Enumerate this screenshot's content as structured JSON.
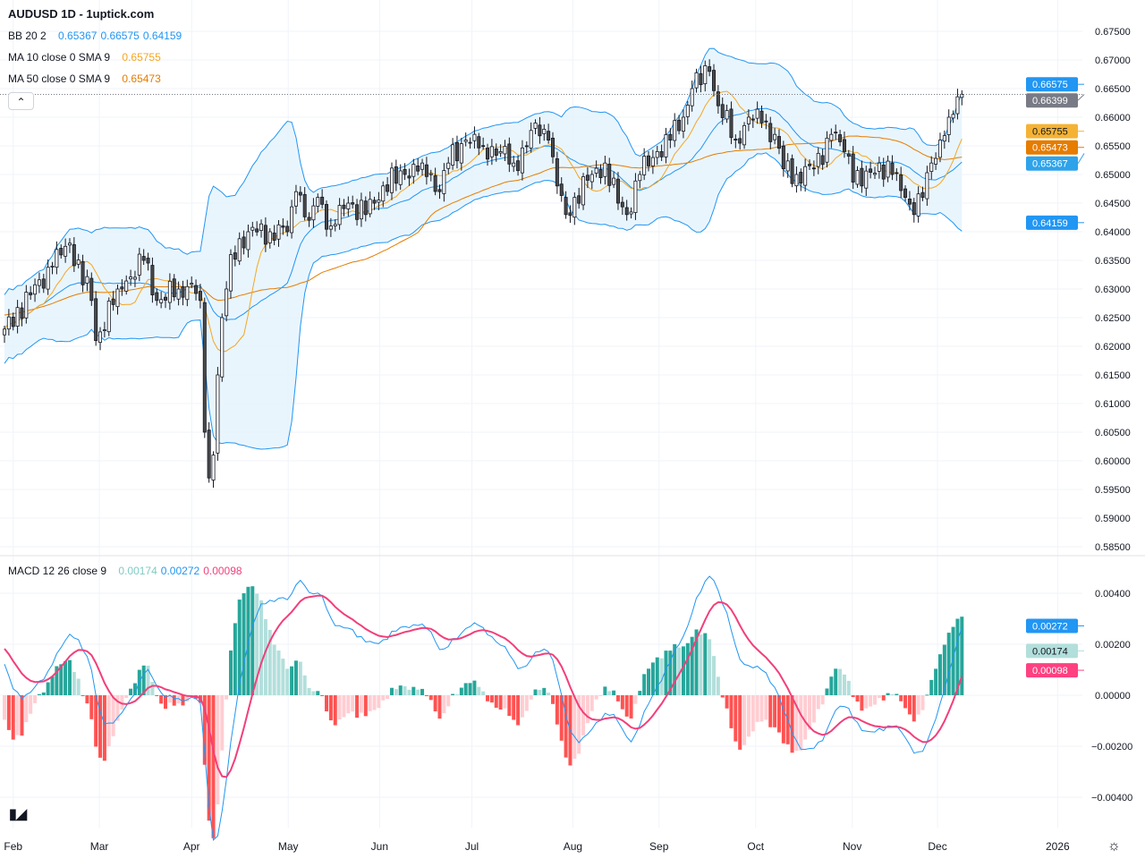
{
  "header": {
    "title": "AUDUSD 1D - 1uptick.com"
  },
  "legend": {
    "bb": {
      "label": "BB 20 2",
      "values": [
        "0.65367",
        "0.66575",
        "0.64159"
      ],
      "color": "#2196f3"
    },
    "ma10": {
      "label": "MA 10 close 0 SMA 9",
      "value": "0.65755",
      "color": "#f5a623"
    },
    "ma50": {
      "label": "MA 50 close 0 SMA 9",
      "value": "0.65473",
      "color": "#e67c00"
    },
    "macd": {
      "label": "MACD 12 26 close 9",
      "values": [
        "0.00174",
        "0.00272",
        "0.00098"
      ],
      "colors": [
        "#80cbc4",
        "#2196f3",
        "#f23f7a"
      ]
    }
  },
  "collapse_icon": "chevron-up-icon",
  "logo": "TV",
  "settings_icon": "gear-icon",
  "chart_data": {
    "type": "candlestick",
    "symbol": "AUDUSD",
    "interval": "1D",
    "bars": 221,
    "close_keypoints": [
      [
        0,
        0.623
      ],
      [
        11,
        0.634
      ],
      [
        15,
        0.638
      ],
      [
        20,
        0.628
      ],
      [
        21,
        0.621
      ],
      [
        26,
        0.63
      ],
      [
        32,
        0.635
      ],
      [
        35,
        0.628
      ],
      [
        40,
        0.63
      ],
      [
        43,
        0.631
      ],
      [
        45,
        0.628
      ],
      [
        46,
        0.605
      ],
      [
        47,
        0.597
      ],
      [
        48,
        0.601
      ],
      [
        49,
        0.615
      ],
      [
        50,
        0.625
      ],
      [
        51,
        0.63
      ],
      [
        52,
        0.636
      ],
      [
        56,
        0.64
      ],
      [
        61,
        0.64
      ],
      [
        65,
        0.64
      ],
      [
        67,
        0.647
      ],
      [
        70,
        0.642
      ],
      [
        72,
        0.646
      ],
      [
        75,
        0.641
      ],
      [
        79,
        0.645
      ],
      [
        83,
        0.643
      ],
      [
        87,
        0.648
      ],
      [
        92,
        0.65
      ],
      [
        96,
        0.652
      ],
      [
        100,
        0.647
      ],
      [
        102,
        0.652
      ],
      [
        106,
        0.656
      ],
      [
        110,
        0.655
      ],
      [
        114,
        0.654
      ],
      [
        117,
        0.652
      ],
      [
        120,
        0.655
      ],
      [
        122,
        0.659
      ],
      [
        125,
        0.656
      ],
      [
        127,
        0.648
      ],
      [
        129,
        0.643
      ],
      [
        131,
        0.646
      ],
      [
        135,
        0.65
      ],
      [
        138,
        0.652
      ],
      [
        141,
        0.645
      ],
      [
        143,
        0.643
      ],
      [
        146,
        0.65
      ],
      [
        150,
        0.654
      ],
      [
        153,
        0.656
      ],
      [
        156,
        0.66
      ],
      [
        158,
        0.665
      ],
      [
        162,
        0.668
      ],
      [
        164,
        0.662
      ],
      [
        168,
        0.656
      ],
      [
        171,
        0.66
      ],
      [
        174,
        0.659
      ],
      [
        177,
        0.657
      ],
      [
        179,
        0.651
      ],
      [
        182,
        0.65
      ],
      [
        186,
        0.651
      ],
      [
        190,
        0.657
      ],
      [
        193,
        0.654
      ],
      [
        197,
        0.648
      ],
      [
        201,
        0.652
      ],
      [
        204,
        0.65
      ],
      [
        207,
        0.646
      ],
      [
        209,
        0.643
      ],
      [
        211,
        0.646
      ],
      [
        213,
        0.652
      ],
      [
        215,
        0.656
      ],
      [
        217,
        0.66
      ],
      [
        220,
        0.66399
      ]
    ],
    "price_axis": {
      "ticks": [
        "0.67500",
        "0.67000",
        "0.66500",
        "0.66000",
        "0.65500",
        "0.65000",
        "0.64500",
        "0.64000",
        "0.63500",
        "0.63000",
        "0.62500",
        "0.62000",
        "0.61500",
        "0.61000",
        "0.60500",
        "0.60000",
        "0.59500",
        "0.59000",
        "0.58500"
      ],
      "range": [
        0.585,
        0.675
      ]
    },
    "macd_axis": {
      "ticks": [
        "0.00400",
        "0.00200",
        "0.00000",
        "-0.00200",
        "-0.00400"
      ],
      "range": [
        -0.004,
        0.004
      ]
    },
    "price_labels": [
      {
        "value": 0.66575,
        "text": "0.66575",
        "bg": "#2196f3",
        "fg": "#ffffff"
      },
      {
        "value": 0.66399,
        "text": "0.66399",
        "bg": "#787b86",
        "fg": "#ffffff"
      },
      {
        "value": 0.65755,
        "text": "0.65755",
        "bg": "#f5b335",
        "fg": "#131722"
      },
      {
        "value": 0.65473,
        "text": "0.65473",
        "bg": "#e67c00",
        "fg": "#ffffff"
      },
      {
        "value": 0.65367,
        "text": "0.65367",
        "bg": "#2ea3ea",
        "fg": "#ffffff"
      },
      {
        "value": 0.64159,
        "text": "0.64159",
        "bg": "#2196f3",
        "fg": "#ffffff"
      }
    ],
    "macd_labels": [
      {
        "value": 0.00272,
        "text": "0.00272",
        "bg": "#2196f3",
        "fg": "#ffffff"
      },
      {
        "value": 0.00174,
        "text": "0.00174",
        "bg": "#b2dfdb",
        "fg": "#131722"
      },
      {
        "value": 0.00098,
        "text": "0.00098",
        "bg": "#ff4081",
        "fg": "#ffffff"
      }
    ],
    "time_ticks": [
      {
        "label": "Feb",
        "bar": 2
      },
      {
        "label": "Mar",
        "bar": 21.8
      },
      {
        "label": "Apr",
        "bar": 43
      },
      {
        "label": "May",
        "bar": 65.2
      },
      {
        "label": "Jun",
        "bar": 86.2
      },
      {
        "label": "Jul",
        "bar": 107.4
      },
      {
        "label": "Aug",
        "bar": 130.6
      },
      {
        "label": "Sep",
        "bar": 150.4
      },
      {
        "label": "Oct",
        "bar": 172.6
      },
      {
        "label": "Nov",
        "bar": 194.8
      },
      {
        "label": "Dec",
        "bar": 214.4
      },
      {
        "label": "2026",
        "bar": 242
      }
    ],
    "colors": {
      "bull": "#ffffff",
      "bear": "#4a4a4a",
      "outline": "#131722",
      "bb_fill": "#e3f2fd",
      "bb_line": "#2196f3",
      "ma10": "#f5a623",
      "ma50": "#e67c00",
      "macd": "#2196f3",
      "signal": "#f23f7a",
      "hist_up_strong": "#26a69a",
      "hist_up_weak": "#b2dfdb",
      "hist_dn_strong": "#ff5252",
      "hist_dn_weak": "#ffcdd2"
    }
  }
}
